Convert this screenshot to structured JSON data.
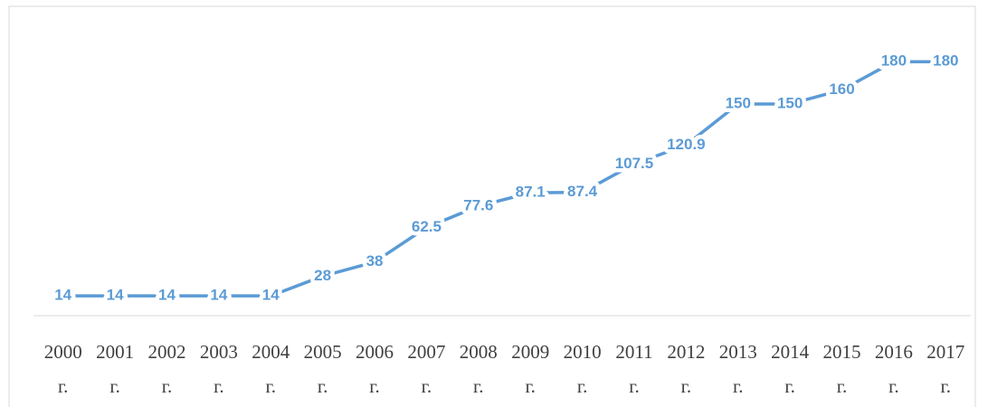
{
  "chart_data": {
    "type": "line",
    "categories": [
      "2000 г.",
      "2001 г.",
      "2002 г.",
      "2003 г.",
      "2004 г.",
      "2005 г.",
      "2006 г.",
      "2007 г.",
      "2008 г.",
      "2009 г.",
      "2010 г.",
      "2011 г.",
      "2012 г.",
      "2013 г.",
      "2014 г.",
      "2015 г.",
      "2016 г.",
      "2017 г."
    ],
    "series": [
      {
        "color": "#5b9bd5",
        "values": [
          14,
          14,
          14,
          14,
          14,
          28,
          38,
          62.5,
          77.6,
          87.1,
          87.4,
          107.5,
          120.9,
          150,
          150,
          160,
          180,
          180
        ]
      }
    ],
    "ylim": [
      0,
      200
    ],
    "data_labels": true
  }
}
